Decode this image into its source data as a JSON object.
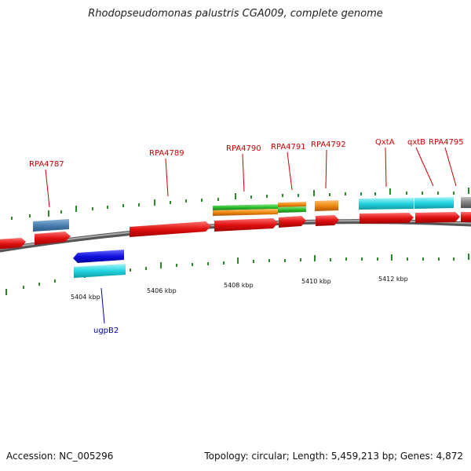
{
  "title": "Rhodopseudomonas palustris CGA009, complete genome",
  "footer": {
    "accession": "Accession: NC_005296",
    "topology": "Topology: circular; Length: 5,459,213 bp; Genes: 4,872"
  },
  "colors": {
    "forward_gene": "#e01010",
    "reverse_gene": "#1010dd",
    "cyan_feature": "#22d4e0",
    "steel_feature": "#4a7fb0",
    "green_feature": "#2ec02e",
    "orange_feature": "#f08a10",
    "gray_feature": "#808080",
    "tick": "#2a8a2a",
    "label_forward": "#cc0000",
    "label_reverse": "#0000aa"
  },
  "axis": {
    "ticks": [
      {
        "label": "5404 kbp"
      },
      {
        "label": "5406 kbp"
      },
      {
        "label": "5408 kbp"
      },
      {
        "label": "5410 kbp"
      },
      {
        "label": "5412 kbp"
      }
    ]
  },
  "gene_labels": [
    {
      "text": "RPA4787",
      "strand": "forward"
    },
    {
      "text": "RPA4789",
      "strand": "forward"
    },
    {
      "text": "RPA4790",
      "strand": "forward"
    },
    {
      "text": "RPA4791",
      "strand": "forward"
    },
    {
      "text": "RPA4792",
      "strand": "forward"
    },
    {
      "text": "QxtA",
      "strand": "forward"
    },
    {
      "text": "qxtB",
      "strand": "forward"
    },
    {
      "text": "RPA4795",
      "strand": "forward"
    },
    {
      "text": "ugpB2",
      "strand": "reverse"
    }
  ]
}
